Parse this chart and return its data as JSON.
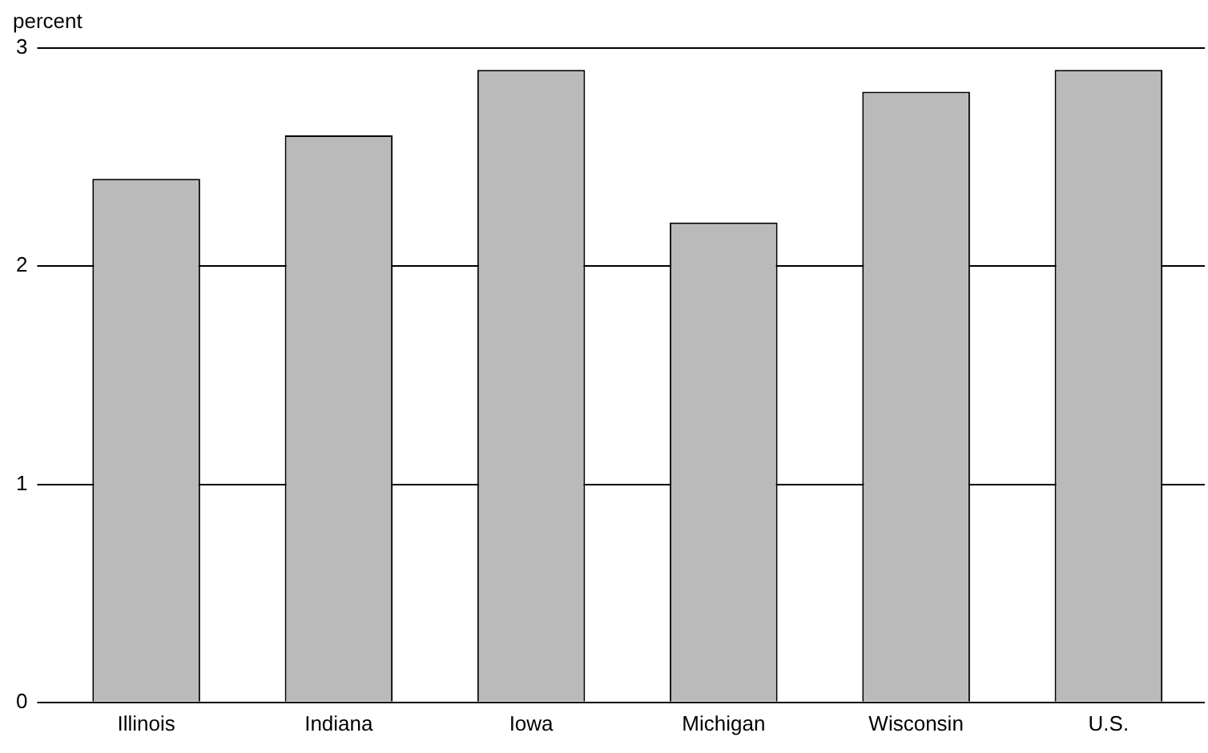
{
  "chart_data": {
    "type": "bar",
    "ylabel": "percent",
    "categories": [
      "Illinois",
      "Indiana",
      "Iowa",
      "Michigan",
      "Wisconsin",
      "U.S."
    ],
    "values": [
      2.4,
      2.6,
      2.9,
      2.2,
      2.8,
      2.9
    ],
    "color": "#bababa",
    "ylim": [
      0,
      3
    ],
    "yticks": [
      0,
      1,
      2,
      3
    ],
    "grid": "y",
    "legend": false
  }
}
